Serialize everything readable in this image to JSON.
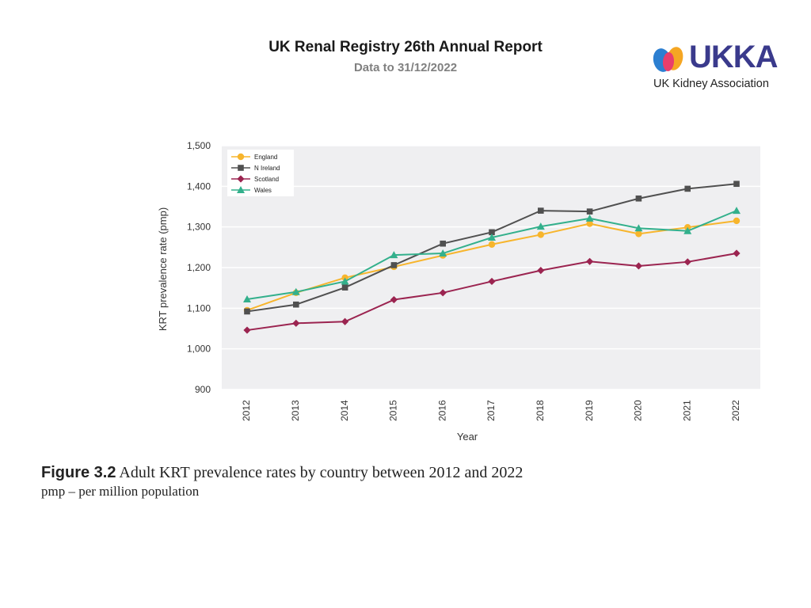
{
  "header": {
    "title": "UK Renal Registry 26th Annual Report",
    "subtitle": "Data to 31/12/2022"
  },
  "logo": {
    "wordmark": "UKKA",
    "tagline": "UK Kidney Association",
    "colors": {
      "orange": "#f5a623",
      "pink": "#e83e6c",
      "blue": "#2c7fd1",
      "navy": "#3a3a8c"
    }
  },
  "chart_data": {
    "type": "line",
    "title": "",
    "xlabel": "Year",
    "ylabel": "KRT prevalence rate (pmp)",
    "ylim": [
      900,
      1500
    ],
    "yticks": [
      900,
      1000,
      1100,
      1200,
      1300,
      1400,
      1500
    ],
    "ytick_labels": [
      "900",
      "1,000",
      "1,100",
      "1,200",
      "1,300",
      "1,400",
      "1,500"
    ],
    "categories": [
      "2012",
      "2013",
      "2014",
      "2015",
      "2016",
      "2017",
      "2018",
      "2019",
      "2020",
      "2021",
      "2022"
    ],
    "grid": true,
    "legend": "top-left",
    "series": [
      {
        "name": "England",
        "color": "#f7b52c",
        "marker": "circle",
        "values": [
          1095,
          1138,
          1175,
          1202,
          1230,
          1257,
          1281,
          1308,
          1283,
          1299,
          1315
        ]
      },
      {
        "name": "N Ireland",
        "color": "#505050",
        "marker": "square",
        "values": [
          1092,
          1109,
          1151,
          1206,
          1259,
          1287,
          1340,
          1338,
          1370,
          1394,
          1406
        ]
      },
      {
        "name": "Scotland",
        "color": "#9b2450",
        "marker": "diamond",
        "values": [
          1046,
          1063,
          1067,
          1121,
          1138,
          1166,
          1193,
          1215,
          1204,
          1214,
          1235
        ]
      },
      {
        "name": "Wales",
        "color": "#33b08c",
        "marker": "triangle",
        "values": [
          1122,
          1140,
          1166,
          1231,
          1235,
          1274,
          1301,
          1321,
          1297,
          1290,
          1340
        ]
      }
    ]
  },
  "caption": {
    "figure_label": "Figure 3.2",
    "figure_text": "Adult KRT prevalence rates by country between 2012 and 2022",
    "note": "pmp – per million population"
  }
}
